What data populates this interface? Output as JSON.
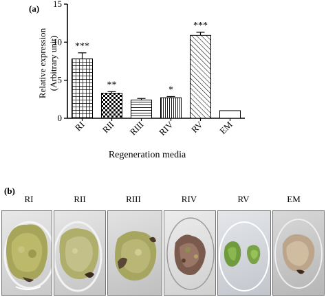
{
  "chart_data": {
    "type": "bar",
    "panel_label": "(a)",
    "xlabel": "Regeneration media",
    "ylabel_line1": "Relative expression",
    "ylabel_line2": "(Arbitrary unit)",
    "ylim": [
      0,
      15
    ],
    "yticks": [
      "0",
      "5",
      "10",
      "15"
    ],
    "grid": false,
    "categories": [
      "RI",
      "RII",
      "RIII",
      "RIV",
      "RV",
      "EM"
    ],
    "values": [
      7.8,
      3.3,
      2.4,
      2.7,
      10.9,
      1.0
    ],
    "errors": [
      0.8,
      0.2,
      0.2,
      0.15,
      0.4,
      0.0
    ],
    "significance": [
      "***",
      "**",
      "",
      "*",
      "***",
      ""
    ],
    "patterns": [
      "grid",
      "checker",
      "hlines",
      "vlines",
      "diagonal",
      "plain"
    ]
  },
  "panel_b": {
    "panel_label": "(b)",
    "labels": [
      "RI",
      "RII",
      "RIII",
      "RIV",
      "RV",
      "EM"
    ]
  }
}
